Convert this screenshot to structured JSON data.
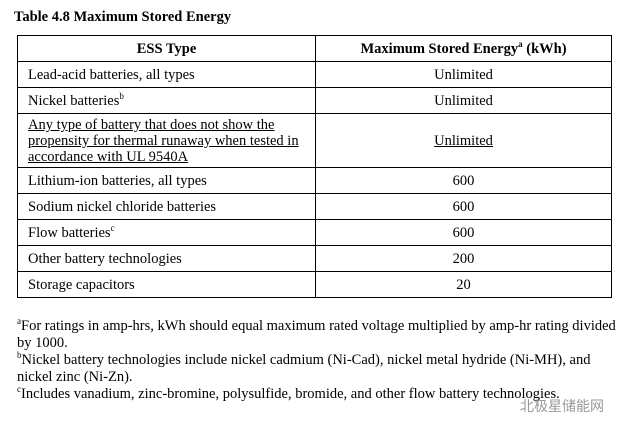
{
  "title": "Table 4.8 Maximum Stored Energy",
  "table": {
    "header": {
      "type": "ESS Type",
      "energy": "Maximum Stored Energy",
      "energy_sup": "a",
      "energy_unit": " (kWh)"
    },
    "rows": [
      {
        "type": "Lead-acid batteries, all types",
        "energy": "Unlimited"
      },
      {
        "type": "Nickel batteries",
        "sup": "b",
        "energy": "Unlimited"
      },
      {
        "type": "Any type of battery that does not show the propensity for thermal runaway when tested in accordance with UL 9540A",
        "energy": "Unlimited"
      },
      {
        "type": "Lithium-ion batteries, all types",
        "energy": "600"
      },
      {
        "type": "Sodium nickel chloride batteries",
        "energy": "600"
      },
      {
        "type": "Flow batteries",
        "sup": "c",
        "energy": "600"
      },
      {
        "type": "Other battery technologies",
        "energy": "200"
      },
      {
        "type": "Storage capacitors",
        "energy": "20"
      }
    ]
  },
  "footnotes": [
    {
      "mark": "a",
      "text": "For ratings in amp-hrs, kWh should equal maximum rated voltage multiplied by amp-hr rating divided by 1000."
    },
    {
      "mark": "b",
      "text": "Nickel battery technologies include nickel cadmium (Ni-Cad), nickel metal hydride (Ni-MH), and nickel zinc (Ni-Zn)."
    },
    {
      "mark": "c",
      "text": "Includes vanadium, zinc-bromine, polysulfide, bromide, and other flow battery technologies."
    }
  ],
  "watermark": "北极星储能网"
}
